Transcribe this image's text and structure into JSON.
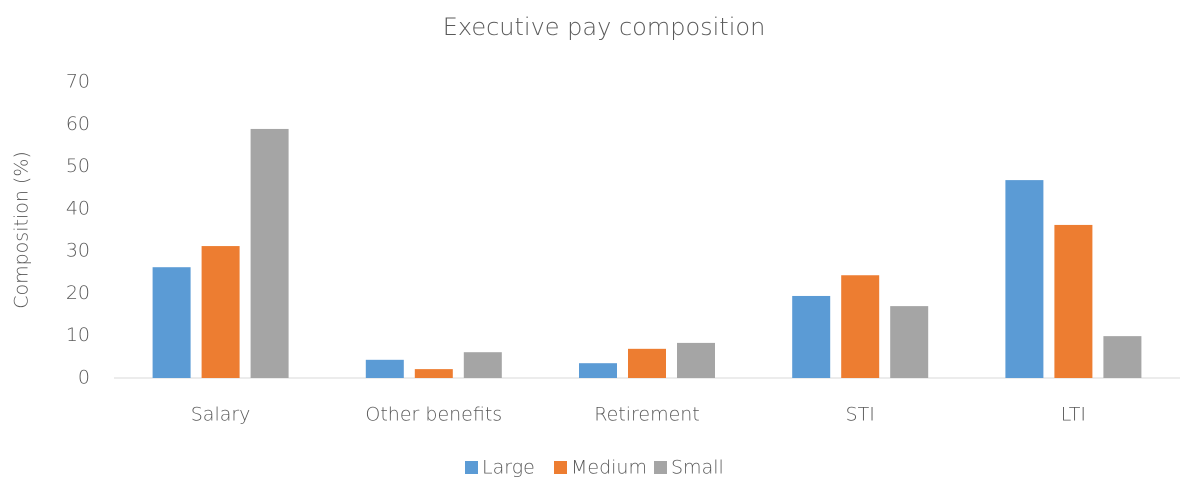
{
  "chart_data": {
    "type": "bar",
    "title": "Executive pay composition",
    "y_label": "Composition (%)",
    "categories": [
      "Salary",
      "Other benefits",
      "Retirement",
      "STI",
      "LTI"
    ],
    "series": [
      {
        "name": "Large",
        "color": "#5b9bd5",
        "values": [
          26.2,
          4.3,
          3.5,
          19.4,
          46.8
        ]
      },
      {
        "name": "Medium",
        "color": "#ed7d31",
        "values": [
          31.2,
          2.1,
          6.9,
          24.3,
          36.2
        ]
      },
      {
        "name": "Small",
        "color": "#a5a5a5",
        "values": [
          58.9,
          6.1,
          8.3,
          17.0,
          9.9
        ]
      }
    ],
    "ylim": [
      0,
      70
    ],
    "yticks": [
      0,
      10,
      20,
      30,
      40,
      50,
      60,
      70
    ],
    "grid": false,
    "legend": "bottom"
  }
}
